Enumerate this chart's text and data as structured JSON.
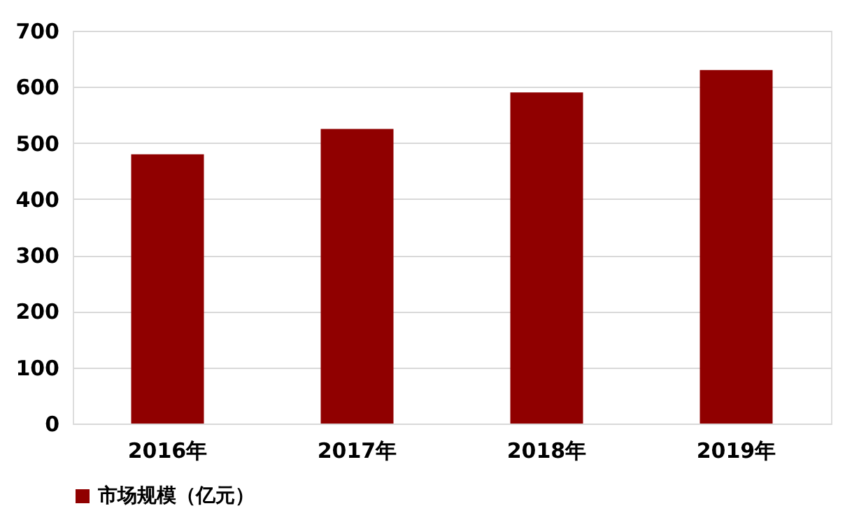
{
  "chart_data": {
    "type": "bar",
    "categories": [
      "2016年",
      "2017年",
      "2018年",
      "2019年"
    ],
    "series": [
      {
        "name": "市场规模（亿元）",
        "color": "#900000",
        "values": [
          480,
          525,
          590,
          630
        ]
      }
    ],
    "ylim": [
      0,
      700
    ],
    "yticks": [
      0,
      100,
      200,
      300,
      400,
      500,
      600,
      700
    ],
    "grid": "y",
    "legend": "bottom"
  }
}
